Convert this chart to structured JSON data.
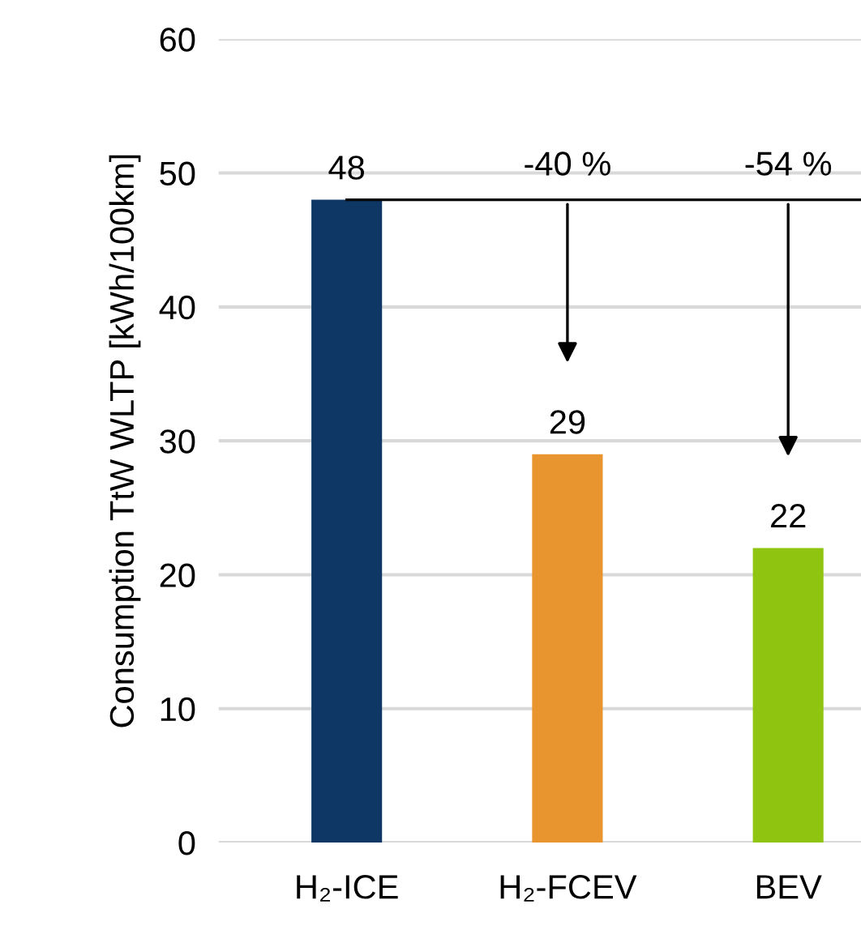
{
  "chart_data": {
    "type": "bar",
    "ylabel": "Consumption TtW WLTP [kWh/100km]",
    "categories": [
      "H₂-ICE",
      "H₂-FCEV",
      "BEV"
    ],
    "values": [
      48,
      29,
      22
    ],
    "colors": [
      "#0e3765",
      "#e8952f",
      "#8fc511"
    ],
    "data_labels": true,
    "ylim": [
      0,
      60
    ],
    "yticks": [
      0,
      10,
      20,
      30,
      40,
      50,
      60
    ],
    "grid": "y",
    "ref_lines": [
      {
        "axis": "y",
        "value": 48,
        "color": "#000000"
      }
    ],
    "annotations": [
      "-40 %",
      "-54 %"
    ]
  }
}
